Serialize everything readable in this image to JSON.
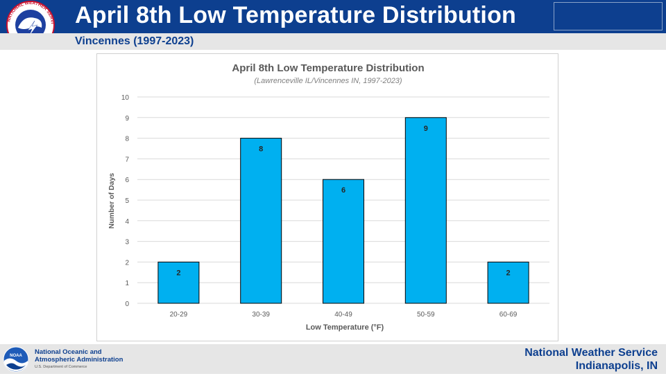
{
  "header": {
    "title": "April 8th Low Temperature Distribution",
    "subtitle": "Vincennes (1997-2023)",
    "logo_text": "NATIONAL WEATHER SERVICE"
  },
  "footer": {
    "noaa_name": "National Oceanic and\nAtmospheric Administration",
    "noaa_dept": "U.S. Department of Commerce",
    "noaa_logo_text": "NOAA",
    "office_line1": "National Weather Service",
    "office_line2": "Indianapolis, IN"
  },
  "colors": {
    "brand_blue": "#0d3f8f",
    "bar_fill": "#00b0f0",
    "bar_stroke": "#000000",
    "grid": "#d9d9d9"
  },
  "chart_data": {
    "type": "bar",
    "title": "April 8th Low Temperature Distribution",
    "subtitle": "(Lawrenceville IL/Vincennes IN, 1997-2023)",
    "xlabel": "Low Temperature (°F)",
    "ylabel": "Number of Days",
    "categories": [
      "20-29",
      "30-39",
      "40-49",
      "50-59",
      "60-69"
    ],
    "values": [
      2,
      8,
      6,
      9,
      2
    ],
    "data_labels": [
      "2",
      "8",
      "6",
      "9",
      "2"
    ],
    "ylim": [
      0,
      10
    ],
    "yticks": [
      "0",
      "1",
      "2",
      "3",
      "4",
      "5",
      "6",
      "7",
      "8",
      "9",
      "10"
    ],
    "grid": true,
    "legend": "none"
  }
}
